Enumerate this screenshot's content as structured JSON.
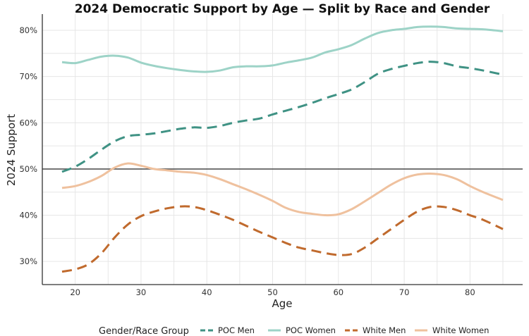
{
  "chart_data": {
    "type": "line",
    "title": "2024 Democratic Support by Age — Split by Race and Gender",
    "xlabel": "Age",
    "ylabel": "2024 Support",
    "xlim": [
      15,
      88
    ],
    "ylim": [
      0.25,
      0.835
    ],
    "x_ticks": [
      20,
      30,
      40,
      50,
      60,
      70,
      80
    ],
    "y_ticks": [
      0.3,
      0.4,
      0.5,
      0.6,
      0.7,
      0.8
    ],
    "y_tick_labels": [
      "30%",
      "40%",
      "50%",
      "60%",
      "70%",
      "80%"
    ],
    "reference_line": 0.5,
    "grid": true,
    "legend": {
      "title": "Gender/Race Group",
      "position": "bottom"
    },
    "series": [
      {
        "name": "POC Men",
        "color": "#3f9284",
        "dash": "dashed",
        "x": [
          18,
          20,
          22,
          24,
          26,
          28,
          30,
          32,
          34,
          36,
          38,
          40,
          42,
          44,
          46,
          48,
          50,
          52,
          54,
          56,
          58,
          60,
          62,
          64,
          66,
          68,
          70,
          72,
          74,
          76,
          78,
          80,
          82,
          85
        ],
        "values": [
          0.494,
          0.505,
          0.522,
          0.542,
          0.56,
          0.571,
          0.574,
          0.577,
          0.582,
          0.587,
          0.59,
          0.589,
          0.593,
          0.6,
          0.605,
          0.609,
          0.618,
          0.626,
          0.634,
          0.643,
          0.653,
          0.662,
          0.672,
          0.688,
          0.706,
          0.716,
          0.723,
          0.729,
          0.732,
          0.729,
          0.722,
          0.718,
          0.713,
          0.704
        ]
      },
      {
        "name": "POC Women",
        "color": "#9dd3c7",
        "dash": "solid",
        "x": [
          18,
          20,
          22,
          24,
          26,
          28,
          30,
          32,
          34,
          36,
          38,
          40,
          42,
          44,
          46,
          48,
          50,
          52,
          54,
          56,
          58,
          60,
          62,
          64,
          66,
          68,
          70,
          72,
          74,
          76,
          78,
          80,
          82,
          85
        ],
        "values": [
          0.731,
          0.729,
          0.736,
          0.743,
          0.745,
          0.741,
          0.73,
          0.723,
          0.718,
          0.714,
          0.711,
          0.71,
          0.713,
          0.72,
          0.722,
          0.722,
          0.724,
          0.73,
          0.735,
          0.741,
          0.752,
          0.759,
          0.768,
          0.782,
          0.794,
          0.8,
          0.803,
          0.807,
          0.808,
          0.807,
          0.804,
          0.803,
          0.802,
          0.798
        ]
      },
      {
        "name": "White Men",
        "color": "#c06a2d",
        "dash": "dashed",
        "x": [
          18,
          20,
          22,
          24,
          26,
          28,
          30,
          32,
          34,
          36,
          38,
          40,
          42,
          44,
          46,
          48,
          50,
          52,
          54,
          56,
          58,
          60,
          62,
          64,
          66,
          68,
          70,
          72,
          74,
          76,
          78,
          80,
          82,
          85
        ],
        "values": [
          0.278,
          0.283,
          0.294,
          0.318,
          0.352,
          0.38,
          0.398,
          0.408,
          0.415,
          0.419,
          0.418,
          0.411,
          0.401,
          0.39,
          0.377,
          0.364,
          0.352,
          0.34,
          0.33,
          0.324,
          0.318,
          0.314,
          0.316,
          0.33,
          0.35,
          0.37,
          0.39,
          0.408,
          0.418,
          0.418,
          0.411,
          0.4,
          0.39,
          0.37
        ]
      },
      {
        "name": "White Women",
        "color": "#efc19e",
        "dash": "solid",
        "x": [
          18,
          20,
          22,
          24,
          26,
          28,
          30,
          32,
          34,
          36,
          38,
          40,
          42,
          44,
          46,
          48,
          50,
          52,
          54,
          56,
          58,
          60,
          62,
          64,
          66,
          68,
          70,
          72,
          74,
          76,
          78,
          80,
          82,
          85
        ],
        "values": [
          0.459,
          0.463,
          0.472,
          0.485,
          0.503,
          0.512,
          0.507,
          0.5,
          0.497,
          0.494,
          0.492,
          0.487,
          0.478,
          0.467,
          0.456,
          0.444,
          0.431,
          0.416,
          0.407,
          0.403,
          0.4,
          0.402,
          0.413,
          0.43,
          0.448,
          0.466,
          0.48,
          0.488,
          0.49,
          0.487,
          0.478,
          0.463,
          0.45,
          0.433
        ]
      }
    ]
  }
}
